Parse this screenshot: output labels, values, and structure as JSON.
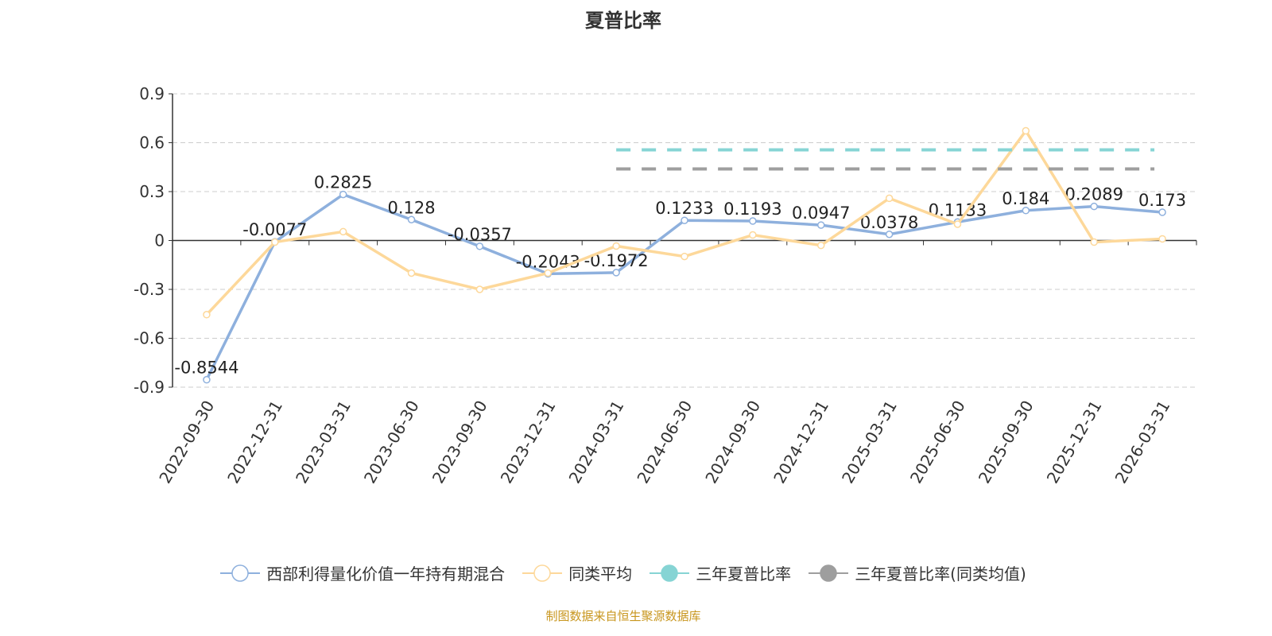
{
  "chart_data": {
    "type": "line",
    "title": "夏普比率",
    "categories": [
      "2022-09-30",
      "2022-12-31",
      "2023-03-31",
      "2023-06-30",
      "2023-09-30",
      "2023-12-31",
      "2024-03-31",
      "2024-06-30",
      "2024-09-30",
      "2024-12-31",
      "2025-03-31",
      "2025-06-30",
      "2025-09-30",
      "2025-12-31",
      "2026-03-31"
    ],
    "ylim": [
      -0.9,
      0.9
    ],
    "yticks": [
      "0.9",
      "0.6",
      "0.3",
      "0",
      "-0.3",
      "-0.6",
      "-0.9"
    ],
    "grid": true,
    "legend_placement": "bottom",
    "series": [
      {
        "name": "西部利得量化价值一年持有期混合",
        "color": "#8eb0dd",
        "labels": true,
        "values": [
          -0.8544,
          -0.0077,
          0.2825,
          0.128,
          -0.0357,
          -0.2043,
          -0.1972,
          0.1233,
          0.1193,
          0.0947,
          0.0378,
          0.1133,
          0.184,
          0.2089,
          0.173
        ]
      },
      {
        "name": "同类平均",
        "color": "#fdd89a",
        "labels": false,
        "values": [
          -0.455,
          -0.01,
          0.054,
          -0.2,
          -0.3,
          -0.2,
          -0.034,
          -0.098,
          0.034,
          -0.03,
          0.259,
          0.1,
          0.673,
          -0.01,
          0.01
        ]
      },
      {
        "name": "三年夏普比率",
        "color": "#86d4d4",
        "dashed": true,
        "from": "2024-03-31",
        "to": "2026-03-31",
        "value": 0.556
      },
      {
        "name": "三年夏普比率(同类均值)",
        "color": "#9e9e9e",
        "dashed": true,
        "from": "2024-03-31",
        "to": "2026-03-31",
        "value": 0.439
      }
    ]
  },
  "footer": "制图数据来自恒生聚源数据库"
}
